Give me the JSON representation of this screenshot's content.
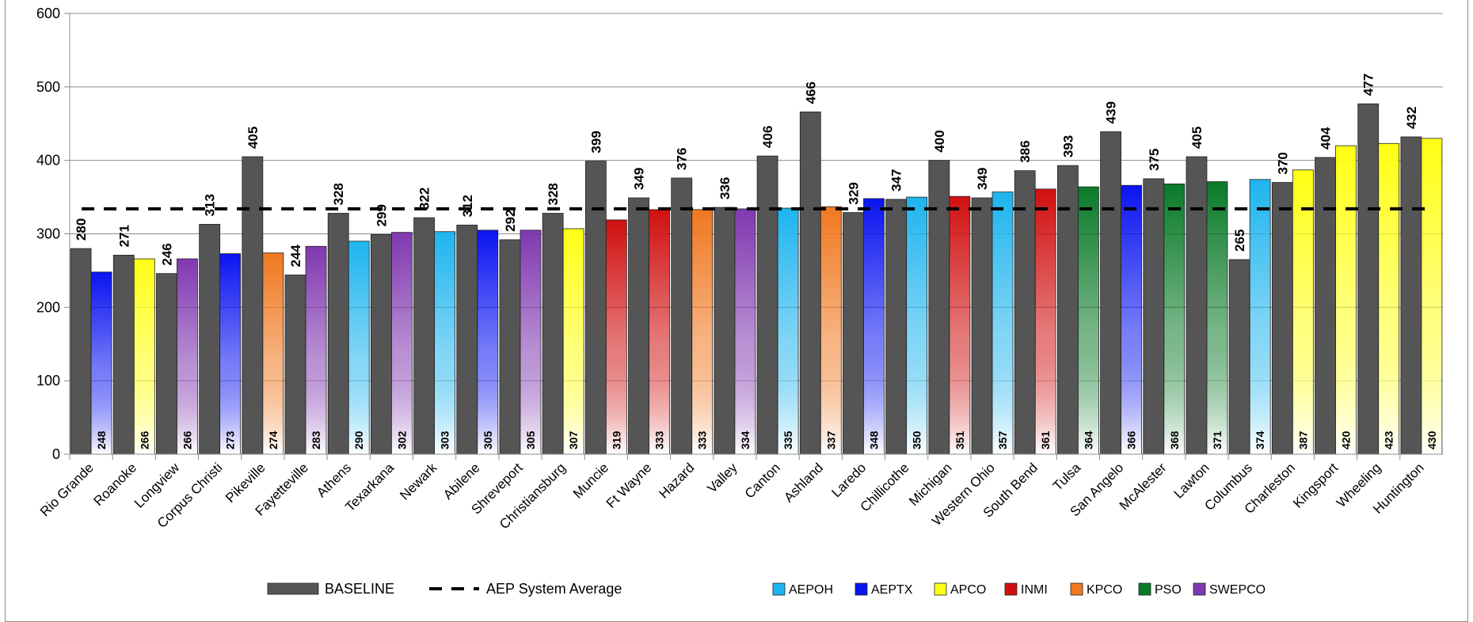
{
  "chart_data": {
    "type": "bar",
    "ylim": [
      0,
      600
    ],
    "y_ticks": [
      "0",
      "100",
      "200",
      "300",
      "400",
      "500",
      "600"
    ],
    "grid": "horizontal",
    "legend_position": "bottom",
    "categories": [
      "Rio Grande",
      "Roanoke",
      "Longview",
      "Corpus Christi",
      "Pikeville",
      "Fayetteville",
      "Athens",
      "Texarkana",
      "Newark",
      "Abilene",
      "Shreveport",
      "Christiansburg",
      "Muncie",
      "Ft Wayne",
      "Hazard",
      "Valley",
      "Canton",
      "Ashland",
      "Laredo",
      "Chillicothe",
      "Michigan",
      "Western Ohio",
      "South Bend",
      "Tulsa",
      "San Angelo",
      "McAlester",
      "Lawton",
      "Columbus",
      "Charleston",
      "Kingsport",
      "Wheeling",
      "Huntington"
    ],
    "baseline": {
      "name": "BASELINE",
      "color": "#555555",
      "values": [
        280,
        271,
        246,
        313,
        405,
        244,
        328,
        299,
        322,
        312,
        292,
        328,
        399,
        349,
        376,
        336,
        406,
        466,
        329,
        347,
        400,
        349,
        386,
        393,
        439,
        375,
        405,
        265,
        370,
        404,
        477,
        432
      ],
      "labels": [
        "280",
        "271",
        "246",
        "313",
        "405",
        "244",
        "328",
        "299",
        "322",
        "312",
        "292",
        "328",
        "399",
        "349",
        "376",
        "336",
        "406",
        "466",
        "329",
        "347",
        "400",
        "349",
        "386",
        "393",
        "439",
        "375",
        "405",
        "265",
        "370",
        "404",
        "477",
        "432"
      ]
    },
    "company_values": [
      248,
      266,
      266,
      273,
      274,
      283,
      290,
      302,
      303,
      305,
      305,
      307,
      319,
      333,
      333,
      334,
      335,
      337,
      348,
      350,
      351,
      357,
      361,
      364,
      366,
      368,
      371,
      374,
      387,
      420,
      423,
      430
    ],
    "company_labels": [
      "248",
      "266",
      "266",
      "273",
      "274",
      "283",
      "290",
      "302",
      "303",
      "305",
      "305",
      "307",
      "319",
      "333",
      "333",
      "334",
      "335",
      "337",
      "348",
      "350",
      "351",
      "357",
      "361",
      "364",
      "366",
      "368",
      "371",
      "374",
      "387",
      "420",
      "423",
      "430"
    ],
    "company_of_bar": [
      "AEPTX",
      "APCO",
      "SWEPCO",
      "AEPTX",
      "KPCO",
      "SWEPCO",
      "AEPOH",
      "SWEPCO",
      "AEPOH",
      "AEPTX",
      "SWEPCO",
      "APCO",
      "INMI",
      "INMI",
      "KPCO",
      "SWEPCO",
      "AEPOH",
      "KPCO",
      "AEPTX",
      "AEPOH",
      "INMI",
      "AEPOH",
      "INMI",
      "PSO",
      "AEPTX",
      "PSO",
      "PSO",
      "AEPOH",
      "APCO",
      "APCO",
      "APCO",
      "APCO"
    ],
    "system_average": {
      "name": "AEP System Average",
      "value": 334
    },
    "companies": [
      {
        "name": "AEPOH",
        "color": "#1EB4EE"
      },
      {
        "name": "AEPTX",
        "color": "#0A14F0"
      },
      {
        "name": "APCO",
        "color": "#FFFF14"
      },
      {
        "name": "INMI",
        "color": "#D01010"
      },
      {
        "name": "KPCO",
        "color": "#F07820"
      },
      {
        "name": "PSO",
        "color": "#0A7A28"
      },
      {
        "name": "SWEPCO",
        "color": "#8038B0"
      }
    ]
  },
  "legend": {
    "baseline_label": "BASELINE",
    "average_label": "AEP System Average",
    "companies": [
      "AEPOH",
      "AEPTX",
      "APCO",
      "INMI",
      "KPCO",
      "PSO",
      "SWEPCO"
    ]
  }
}
